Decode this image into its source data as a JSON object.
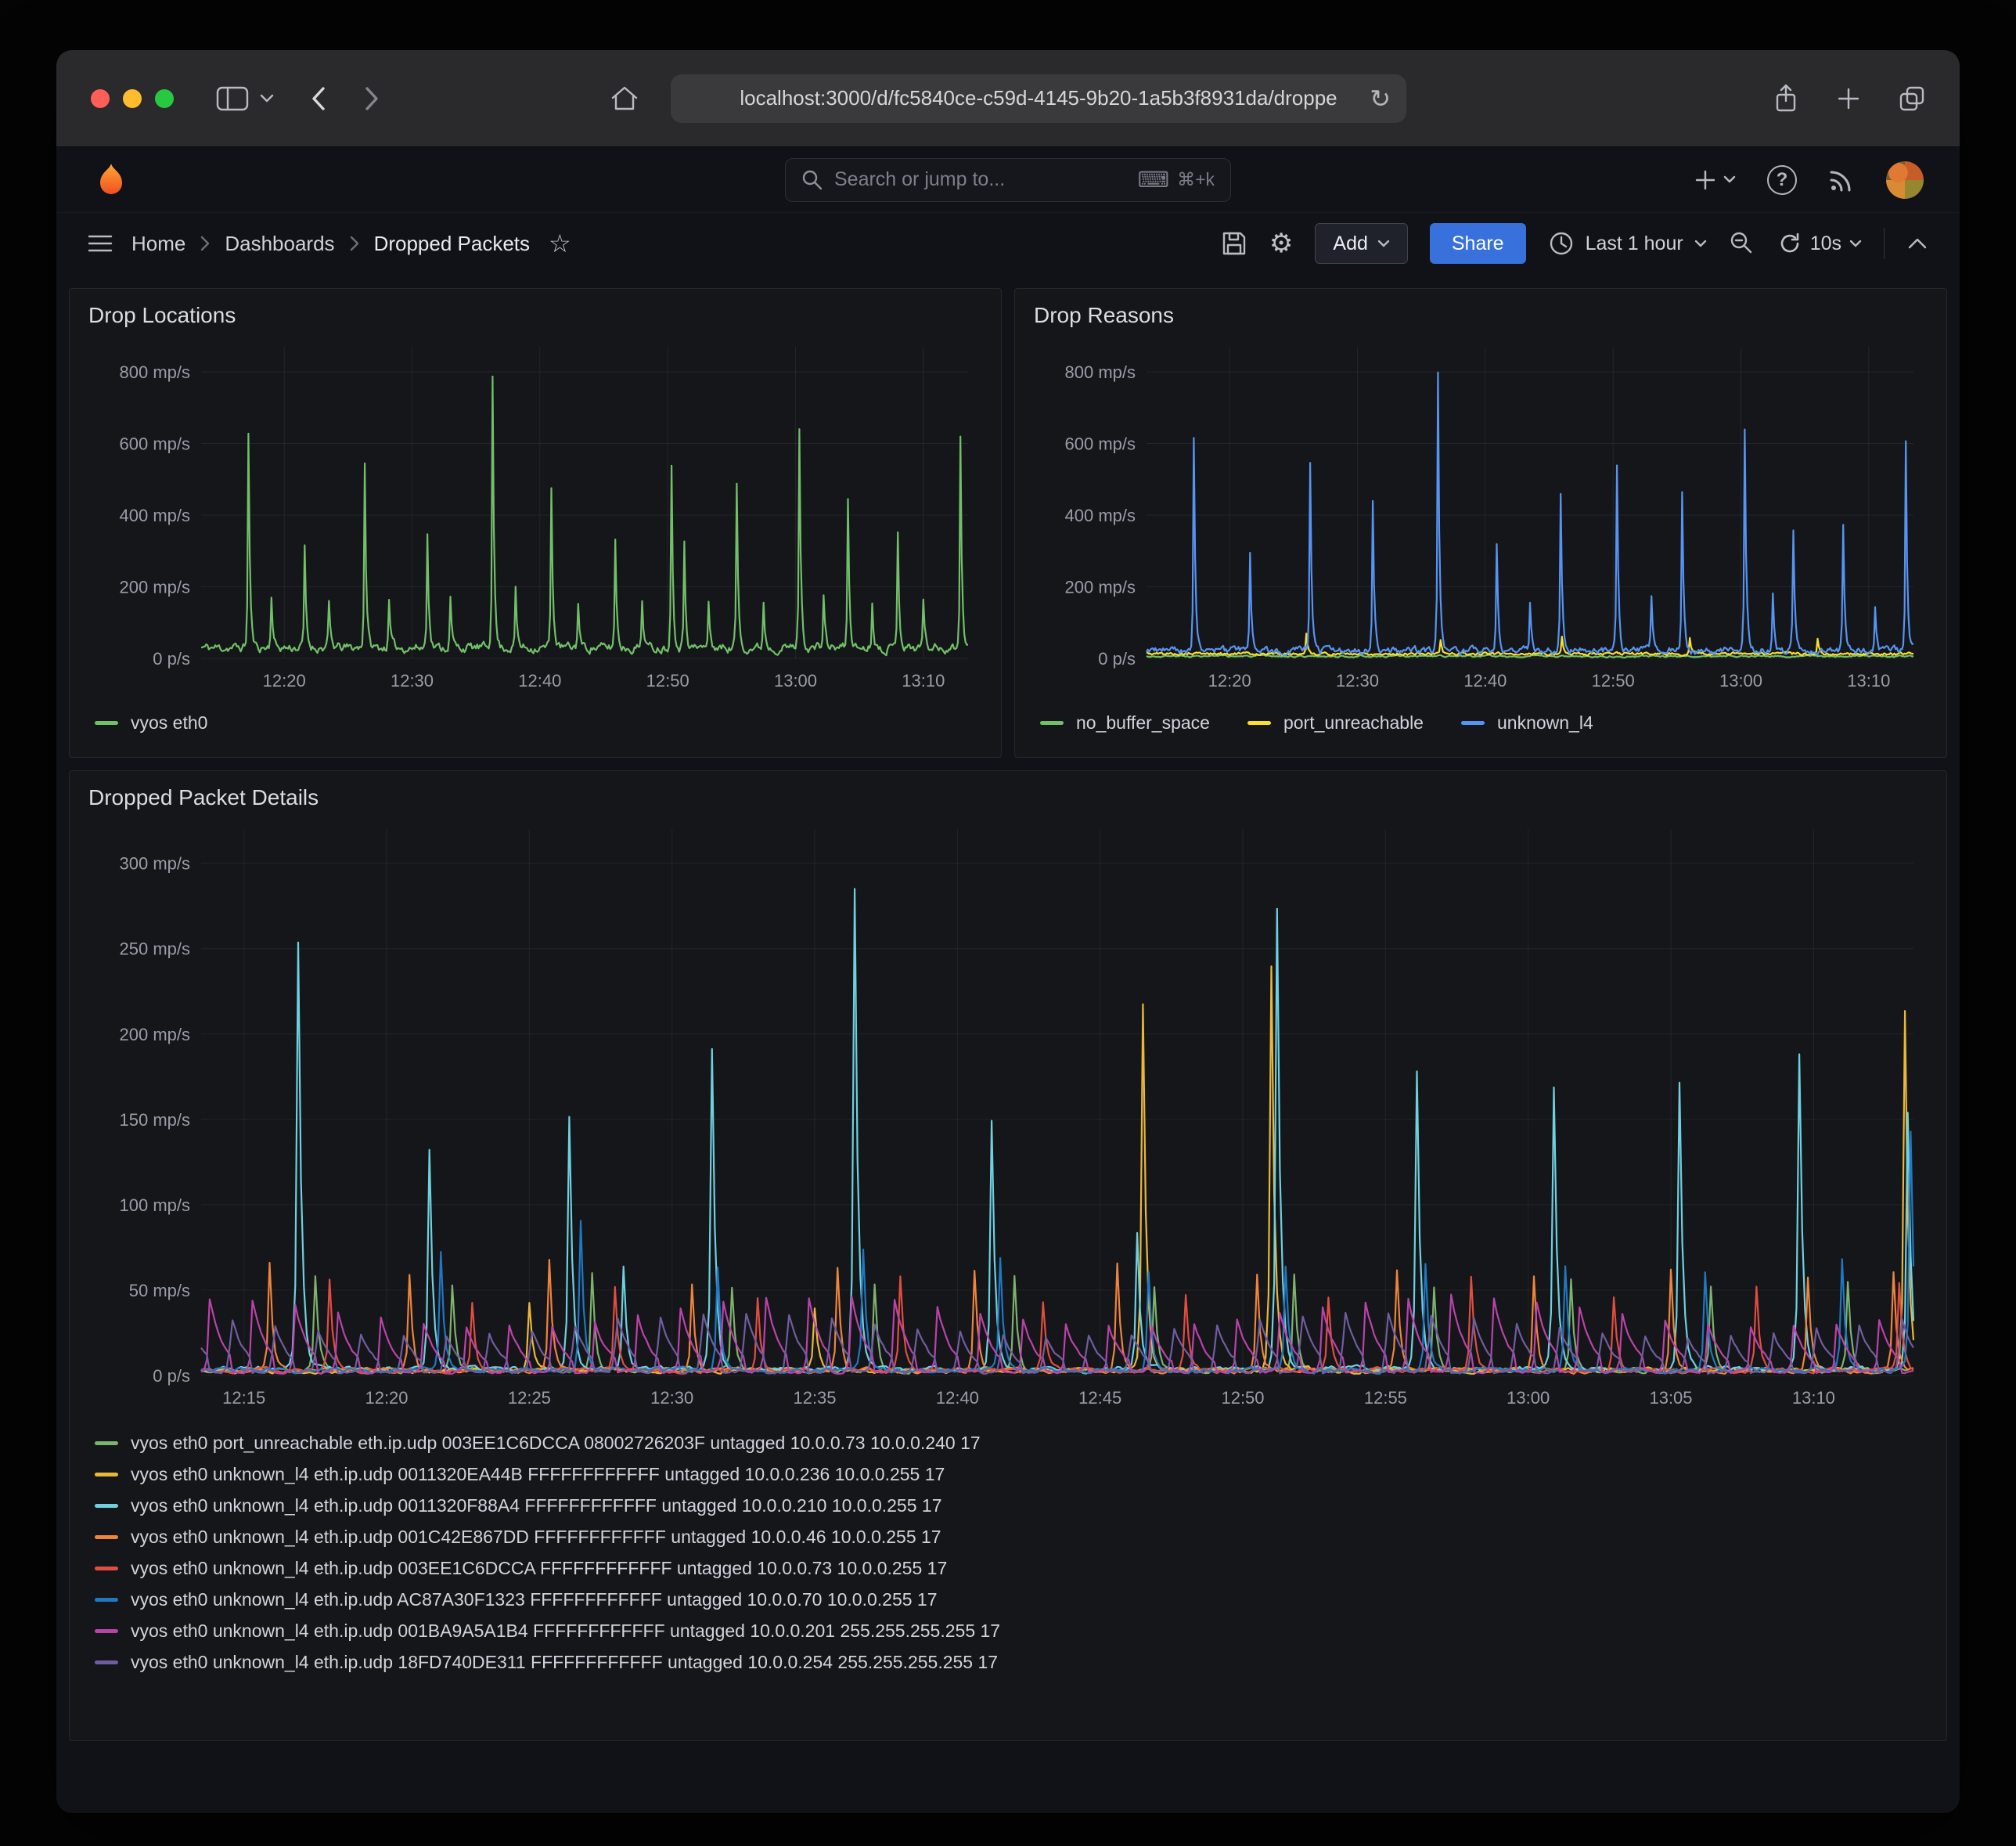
{
  "browser": {
    "url": "localhost:3000/d/fc5840ce-c59d-4145-9b20-1a5b3f8931da/droppe"
  },
  "header": {
    "search_placeholder": "Search or jump to...",
    "search_shortcut": "⌘+k"
  },
  "toolbar": {
    "breadcrumb": [
      "Home",
      "Dashboards",
      "Dropped Packets"
    ],
    "add_label": "Add",
    "share_label": "Share",
    "time_range_label": "Last 1 hour",
    "refresh_interval": "10s"
  },
  "icons": {
    "star": "☆",
    "gear": "⚙",
    "reload": "↻",
    "keyboard": "⌨",
    "help": "?"
  },
  "colors": {
    "traffic_red": "#FF5F57",
    "traffic_yellow": "#FEBC2E",
    "traffic_green": "#28C840",
    "share_button": "#3871DC",
    "page_background": "#111217",
    "panel_background": "#141619"
  },
  "chart_data": [
    {
      "type": "line",
      "title": "Drop Locations",
      "x_domain": [
        733.5,
        793.5
      ],
      "y_domain": [
        0,
        870
      ],
      "grid": true,
      "legend_position": "bottom",
      "legend_layout": "row",
      "yticks": [
        {
          "v": 0,
          "label": "0 p/s"
        },
        {
          "v": 200,
          "label": "200 mp/s"
        },
        {
          "v": 400,
          "label": "400 mp/s"
        },
        {
          "v": 600,
          "label": "600 mp/s"
        },
        {
          "v": 800,
          "label": "800 mp/s"
        }
      ],
      "xticks": [
        {
          "v": 740,
          "label": "12:20"
        },
        {
          "v": 750,
          "label": "12:30"
        },
        {
          "v": 760,
          "label": "12:40"
        },
        {
          "v": 770,
          "label": "12:50"
        },
        {
          "v": 780,
          "label": "13:00"
        },
        {
          "v": 790,
          "label": "13:10"
        }
      ],
      "series": [
        {
          "name": "vyos eth0",
          "color": "#73BF69",
          "seed": 11,
          "baseline": {
            "base": 30,
            "amp": 26
          },
          "spike_shape": "sharp",
          "spikes": [
            [
              737.2,
              600
            ],
            [
              739.0,
              150
            ],
            [
              741.6,
              275
            ],
            [
              743.5,
              120
            ],
            [
              746.3,
              520
            ],
            [
              748.2,
              130
            ],
            [
              751.2,
              330
            ],
            [
              753.0,
              140
            ],
            [
              756.3,
              775
            ],
            [
              758.1,
              160
            ],
            [
              760.9,
              450
            ],
            [
              763.0,
              130
            ],
            [
              765.9,
              300
            ],
            [
              768.0,
              140
            ],
            [
              770.3,
              510
            ],
            [
              771.3,
              300
            ],
            [
              773.2,
              120
            ],
            [
              775.4,
              450
            ],
            [
              777.5,
              130
            ],
            [
              780.3,
              620
            ],
            [
              782.2,
              150
            ],
            [
              784.1,
              410
            ],
            [
              786.0,
              130
            ],
            [
              788.0,
              330
            ],
            [
              790.0,
              140
            ],
            [
              792.9,
              590
            ]
          ]
        }
      ]
    },
    {
      "type": "line",
      "title": "Drop Reasons",
      "x_domain": [
        733.5,
        793.5
      ],
      "y_domain": [
        0,
        870
      ],
      "grid": true,
      "legend_position": "bottom",
      "legend_layout": "row",
      "yticks": [
        {
          "v": 0,
          "label": "0 p/s"
        },
        {
          "v": 200,
          "label": "200 mp/s"
        },
        {
          "v": 400,
          "label": "400 mp/s"
        },
        {
          "v": 600,
          "label": "600 mp/s"
        },
        {
          "v": 800,
          "label": "800 mp/s"
        }
      ],
      "xticks": [
        {
          "v": 740,
          "label": "12:20"
        },
        {
          "v": 750,
          "label": "12:30"
        },
        {
          "v": 760,
          "label": "12:40"
        },
        {
          "v": 770,
          "label": "12:50"
        },
        {
          "v": 780,
          "label": "13:00"
        },
        {
          "v": 790,
          "label": "13:10"
        }
      ],
      "series": [
        {
          "name": "no_buffer_space",
          "color": "#73BF69",
          "seed": 3,
          "baseline": {
            "base": 6,
            "amp": 5
          },
          "spike_shape": "sharp",
          "spikes": []
        },
        {
          "name": "port_unreachable",
          "color": "#FADE2A",
          "seed": 5,
          "baseline": {
            "base": 13,
            "amp": 8
          },
          "spike_shape": "sharp",
          "spikes": [
            [
              746.0,
              55
            ],
            [
              756.5,
              40
            ],
            [
              766.0,
              50
            ],
            [
              776.0,
              42
            ],
            [
              786.0,
              45
            ]
          ]
        },
        {
          "name": "unknown_l4",
          "color": "#5794F2",
          "seed": 9,
          "baseline": {
            "base": 22,
            "amp": 20
          },
          "spike_shape": "sharp",
          "spikes": [
            [
              737.2,
              600
            ],
            [
              741.6,
              265
            ],
            [
              746.3,
              520
            ],
            [
              751.2,
              410
            ],
            [
              756.3,
              770
            ],
            [
              760.9,
              300
            ],
            [
              763.5,
              130
            ],
            [
              765.9,
              430
            ],
            [
              770.3,
              515
            ],
            [
              773.0,
              140
            ],
            [
              775.4,
              450
            ],
            [
              780.3,
              610
            ],
            [
              782.5,
              160
            ],
            [
              784.1,
              330
            ],
            [
              788.0,
              350
            ],
            [
              790.5,
              130
            ],
            [
              792.9,
              580
            ]
          ]
        }
      ]
    },
    {
      "type": "line",
      "title": "Dropped Packet Details",
      "x_domain": [
        733.5,
        793.5
      ],
      "y_domain": [
        0,
        320
      ],
      "grid": true,
      "legend_position": "bottom",
      "legend_layout": "column",
      "yticks": [
        {
          "v": 0,
          "label": "0 p/s"
        },
        {
          "v": 50,
          "label": "50 mp/s"
        },
        {
          "v": 100,
          "label": "100 mp/s"
        },
        {
          "v": 150,
          "label": "150 mp/s"
        },
        {
          "v": 200,
          "label": "200 mp/s"
        },
        {
          "v": 250,
          "label": "250 mp/s"
        },
        {
          "v": 300,
          "label": "300 mp/s"
        }
      ],
      "xticks": [
        {
          "v": 735,
          "label": "12:15"
        },
        {
          "v": 740,
          "label": "12:20"
        },
        {
          "v": 745,
          "label": "12:25"
        },
        {
          "v": 750,
          "label": "12:30"
        },
        {
          "v": 755,
          "label": "12:35"
        },
        {
          "v": 760,
          "label": "12:40"
        },
        {
          "v": 765,
          "label": "12:45"
        },
        {
          "v": 770,
          "label": "12:50"
        },
        {
          "v": 775,
          "label": "12:55"
        },
        {
          "v": 780,
          "label": "13:00"
        },
        {
          "v": 785,
          "label": "13:05"
        },
        {
          "v": 790,
          "label": "13:10"
        }
      ],
      "series": [
        {
          "name": "vyos eth0 port_unreachable eth.ip.udp 003EE1C6DCCA 08002726203F untagged 10.0.0.73 10.0.0.240 17",
          "color": "#7EB26D",
          "seed": 21,
          "baseline": {
            "base": 3,
            "amp": 3
          },
          "spike_shape": "sharp",
          "spikes": [
            [
              737.5,
              55
            ],
            [
              742.3,
              50
            ],
            [
              747.2,
              58
            ],
            [
              752.1,
              48
            ],
            [
              757.1,
              52
            ],
            [
              762.0,
              55
            ],
            [
              766.9,
              50
            ],
            [
              771.8,
              56
            ],
            [
              776.7,
              50
            ],
            [
              781.5,
              54
            ],
            [
              786.4,
              50
            ],
            [
              791.2,
              52
            ]
          ]
        },
        {
          "name": "vyos eth0 unknown_l4 eth.ip.udp 0011320EA44B FFFFFFFFFFFF untagged 10.0.0.236 10.0.0.255 17",
          "color": "#EAB839",
          "seed": 22,
          "baseline": {
            "base": 3,
            "amp": 3
          },
          "spike_shape": "sharp",
          "spikes": [
            [
              745.0,
              40
            ],
            [
              755.0,
              35
            ],
            [
              766.5,
              213
            ],
            [
              771.0,
              236
            ],
            [
              793.2,
              210
            ]
          ]
        },
        {
          "name": "vyos eth0 unknown_l4 eth.ip.udp 0011320F88A4 FFFFFFFFFFFF untagged 10.0.0.210 10.0.0.255 17",
          "color": "#6ED0E0",
          "seed": 23,
          "baseline": {
            "base": 4,
            "amp": 3
          },
          "spike_shape": "sharp",
          "spikes": [
            [
              736.9,
              248
            ],
            [
              741.5,
              128
            ],
            [
              746.4,
              148
            ],
            [
              748.3,
              60
            ],
            [
              751.4,
              188
            ],
            [
              756.4,
              283
            ],
            [
              761.2,
              145
            ],
            [
              766.3,
              80
            ],
            [
              771.2,
              270
            ],
            [
              776.1,
              173
            ],
            [
              780.9,
              163
            ],
            [
              785.3,
              168
            ],
            [
              789.5,
              183
            ],
            [
              793.3,
              150
            ]
          ]
        },
        {
          "name": "vyos eth0 unknown_l4 eth.ip.udp 001C42E867DD FFFFFFFFFFFF untagged 10.0.0.46 10.0.0.255 17",
          "color": "#EF843C",
          "seed": 24,
          "baseline": {
            "base": 3,
            "amp": 3
          },
          "spike_shape": "sharp",
          "spikes": [
            [
              735.9,
              62
            ],
            [
              740.8,
              55
            ],
            [
              745.7,
              65
            ],
            [
              750.7,
              50
            ],
            [
              755.8,
              60
            ],
            [
              760.6,
              58
            ],
            [
              765.6,
              62
            ],
            [
              770.5,
              55
            ],
            [
              775.4,
              58
            ],
            [
              780.2,
              56
            ],
            [
              785.0,
              60
            ],
            [
              789.8,
              55
            ],
            [
              792.8,
              58
            ]
          ]
        },
        {
          "name": "vyos eth0 unknown_l4 eth.ip.udp 003EE1C6DCCA FFFFFFFFFFFF untagged 10.0.0.73 10.0.0.255 17",
          "color": "#E24D42",
          "seed": 25,
          "baseline": {
            "base": 3,
            "amp": 3
          },
          "spike_shape": "sharp",
          "spikes": [
            [
              738.0,
              52
            ],
            [
              743.0,
              40
            ],
            [
              748.0,
              48
            ],
            [
              753.0,
              42
            ],
            [
              758.0,
              55
            ],
            [
              763.0,
              40
            ],
            [
              768.0,
              45
            ],
            [
              773.0,
              42
            ],
            [
              778.0,
              56
            ],
            [
              783.0,
              42
            ],
            [
              788.0,
              48
            ],
            [
              793.0,
              50
            ]
          ]
        },
        {
          "name": "vyos eth0 unknown_l4 eth.ip.udp AC87A30F1323 FFFFFFFFFFFF untagged 10.0.0.70 10.0.0.255 17",
          "color": "#1F78C1",
          "seed": 26,
          "baseline": {
            "base": 3,
            "amp": 3
          },
          "spike_shape": "sharp",
          "spikes": [
            [
              741.9,
              68
            ],
            [
              746.8,
              88
            ],
            [
              751.6,
              60
            ],
            [
              756.7,
              70
            ],
            [
              761.5,
              65
            ],
            [
              766.7,
              58
            ],
            [
              771.5,
              60
            ],
            [
              776.4,
              62
            ],
            [
              781.3,
              62
            ],
            [
              786.2,
              58
            ],
            [
              791.0,
              64
            ],
            [
              793.4,
              140
            ]
          ]
        },
        {
          "name": "vyos eth0 unknown_l4 eth.ip.udp 001BA9A5A1B4 FFFFFFFFFFFF untagged 10.0.0.201 255.255.255.255 17",
          "color": "#BA43A9",
          "seed": 27,
          "baseline": {
            "base": 2,
            "amp": 2
          },
          "spike_shape": "hump",
          "spikes": [],
          "periodic": {
            "period": 1.5,
            "offset": 0.3,
            "value": 44
          }
        },
        {
          "name": "vyos eth0 unknown_l4 eth.ip.udp 18FD740DE311 FFFFFFFFFFFF untagged 10.0.0.254 255.255.255.255 17",
          "color": "#705DA0",
          "seed": 28,
          "baseline": {
            "base": 2,
            "amp": 2
          },
          "spike_shape": "hump",
          "spikes": [],
          "periodic": {
            "period": 1.5,
            "offset": 1.05,
            "value": 38
          }
        }
      ]
    }
  ]
}
